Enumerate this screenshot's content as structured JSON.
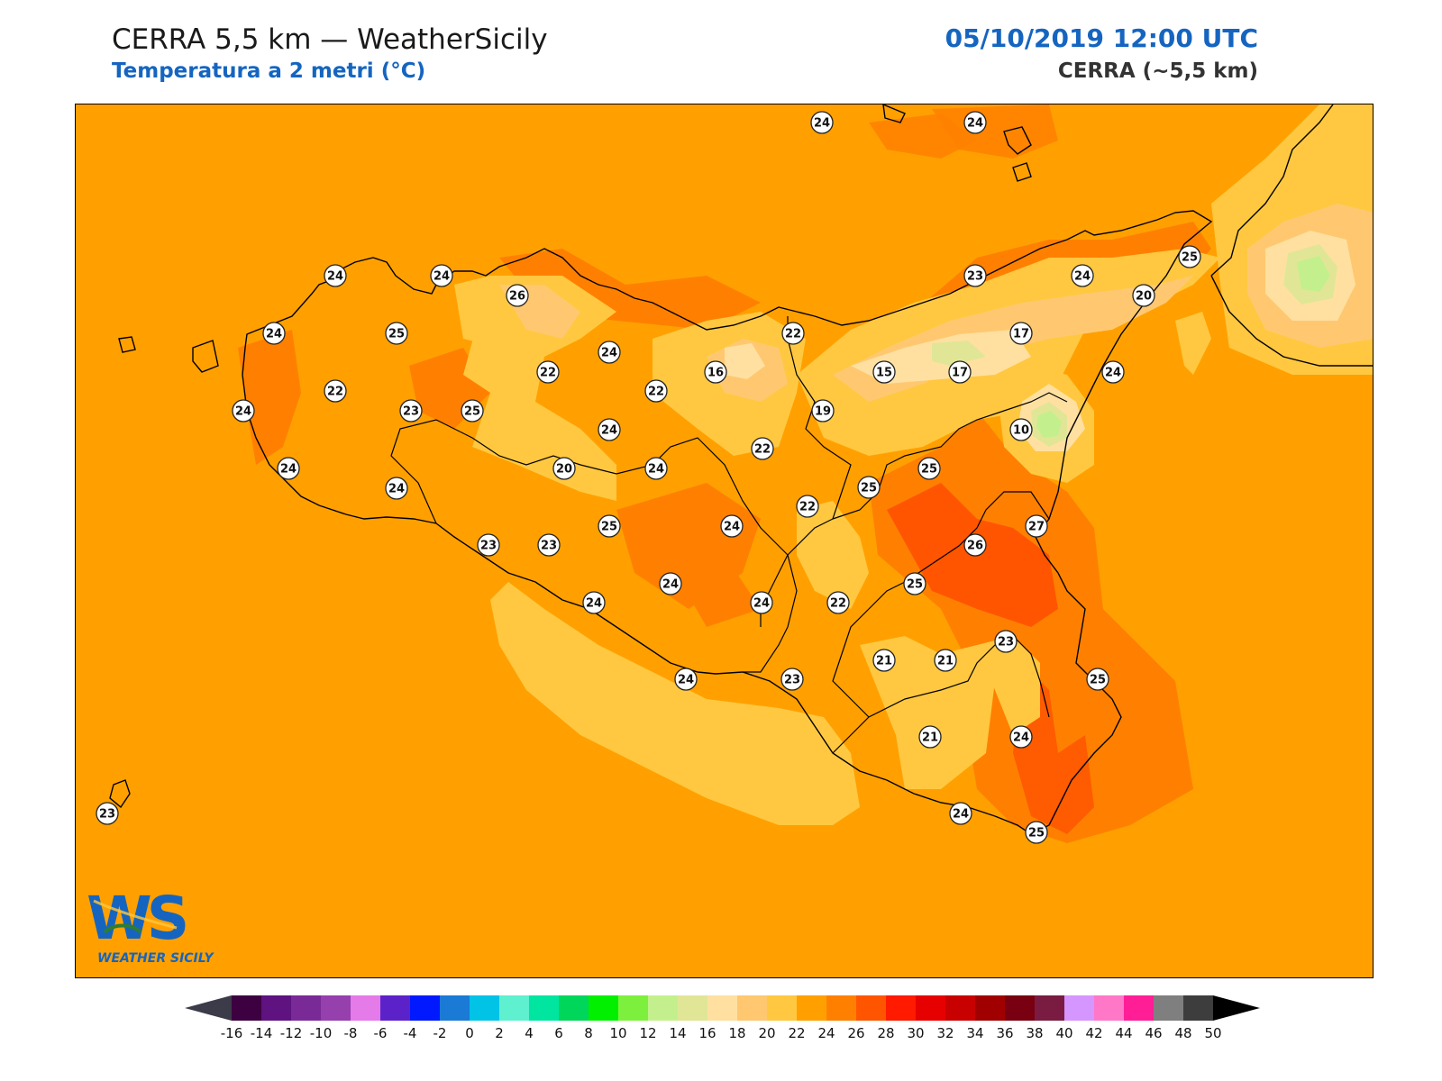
{
  "header": {
    "title": "CERRA 5,5 km — WeatherSicily",
    "subtitle": "Temperatura a 2 metri (°C)",
    "datetime": "05/10/2019 12:00 UTC",
    "model": "CERRA (~5,5 km)"
  },
  "logo": {
    "letters": "WS",
    "name": "WEATHER SICILY"
  },
  "colors": {
    "base": "#ffa000",
    "accent": "#1565c0"
  },
  "colorbar": {
    "ticks": [
      "-16",
      "-14",
      "-12",
      "-10",
      "-8",
      "-6",
      "-4",
      "-2",
      "0",
      "2",
      "4",
      "6",
      "8",
      "10",
      "12",
      "14",
      "16",
      "18",
      "20",
      "22",
      "24",
      "26",
      "28",
      "30",
      "32",
      "34",
      "36",
      "38",
      "40",
      "42",
      "44",
      "46",
      "48",
      "50"
    ],
    "colors": [
      "#3d0040",
      "#5e1380",
      "#7a2a96",
      "#9540ad",
      "#e57ae9",
      "#5c22c9",
      "#0019ff",
      "#1a7ad6",
      "#00c3e6",
      "#5ff0d0",
      "#00e6a0",
      "#00d65a",
      "#00f000",
      "#7cf03c",
      "#c3f08c",
      "#e1e696",
      "#ffe0a0",
      "#ffc870",
      "#ffc840",
      "#ffa000",
      "#ff8000",
      "#ff5500",
      "#ff1a00",
      "#e60000",
      "#c80000",
      "#a00000",
      "#780010",
      "#7a1c42",
      "#d696ff",
      "#ff78c8",
      "#ff1e96",
      "#7f7f7f",
      "#3d3d3d"
    ],
    "under_color": "#3b3b49",
    "over_color": "#000000"
  },
  "stations": [
    {
      "id": "s1",
      "value": "24"
    },
    {
      "id": "s2",
      "value": "24"
    },
    {
      "id": "s3",
      "value": "24"
    },
    {
      "id": "s4",
      "value": "24"
    },
    {
      "id": "s5",
      "value": "26"
    },
    {
      "id": "s6",
      "value": "24"
    },
    {
      "id": "s7",
      "value": "25"
    },
    {
      "id": "s8",
      "value": "22"
    },
    {
      "id": "s9",
      "value": "24"
    },
    {
      "id": "s10",
      "value": "23"
    },
    {
      "id": "s11",
      "value": "25"
    },
    {
      "id": "s12",
      "value": "24"
    },
    {
      "id": "s13",
      "value": "24"
    },
    {
      "id": "s14",
      "value": "22"
    },
    {
      "id": "s15",
      "value": "24"
    },
    {
      "id": "s16",
      "value": "22"
    },
    {
      "id": "s17",
      "value": "16"
    },
    {
      "id": "s18",
      "value": "24"
    },
    {
      "id": "s19",
      "value": "20"
    },
    {
      "id": "s20",
      "value": "24"
    },
    {
      "id": "s21",
      "value": "22"
    },
    {
      "id": "s22",
      "value": "22"
    },
    {
      "id": "s23",
      "value": "19"
    },
    {
      "id": "s24",
      "value": "15"
    },
    {
      "id": "s25",
      "value": "17"
    },
    {
      "id": "s26",
      "value": "23"
    },
    {
      "id": "s27",
      "value": "24"
    },
    {
      "id": "s28",
      "value": "17"
    },
    {
      "id": "s29",
      "value": "25"
    },
    {
      "id": "s30",
      "value": "20"
    },
    {
      "id": "s31",
      "value": "24"
    },
    {
      "id": "s32",
      "value": "10"
    },
    {
      "id": "s33",
      "value": "25"
    },
    {
      "id": "s34",
      "value": "25"
    },
    {
      "id": "s35",
      "value": "22"
    },
    {
      "id": "s36",
      "value": "27"
    },
    {
      "id": "s37",
      "value": "26"
    },
    {
      "id": "s38",
      "value": "25"
    },
    {
      "id": "s39",
      "value": "23"
    },
    {
      "id": "s40",
      "value": "23"
    },
    {
      "id": "s41",
      "value": "25"
    },
    {
      "id": "s42",
      "value": "24"
    },
    {
      "id": "s43",
      "value": "24"
    },
    {
      "id": "s44",
      "value": "24"
    },
    {
      "id": "s45",
      "value": "22"
    },
    {
      "id": "s46",
      "value": "23"
    },
    {
      "id": "s47",
      "value": "21"
    },
    {
      "id": "s48",
      "value": "21"
    },
    {
      "id": "s49",
      "value": "25"
    },
    {
      "id": "s50",
      "value": "24"
    },
    {
      "id": "s51",
      "value": "23"
    },
    {
      "id": "s52",
      "value": "24"
    },
    {
      "id": "s53",
      "value": "24"
    },
    {
      "id": "s54",
      "value": "21"
    },
    {
      "id": "s55",
      "value": "24"
    },
    {
      "id": "s56",
      "value": "25"
    },
    {
      "id": "s57",
      "value": "23"
    }
  ]
}
